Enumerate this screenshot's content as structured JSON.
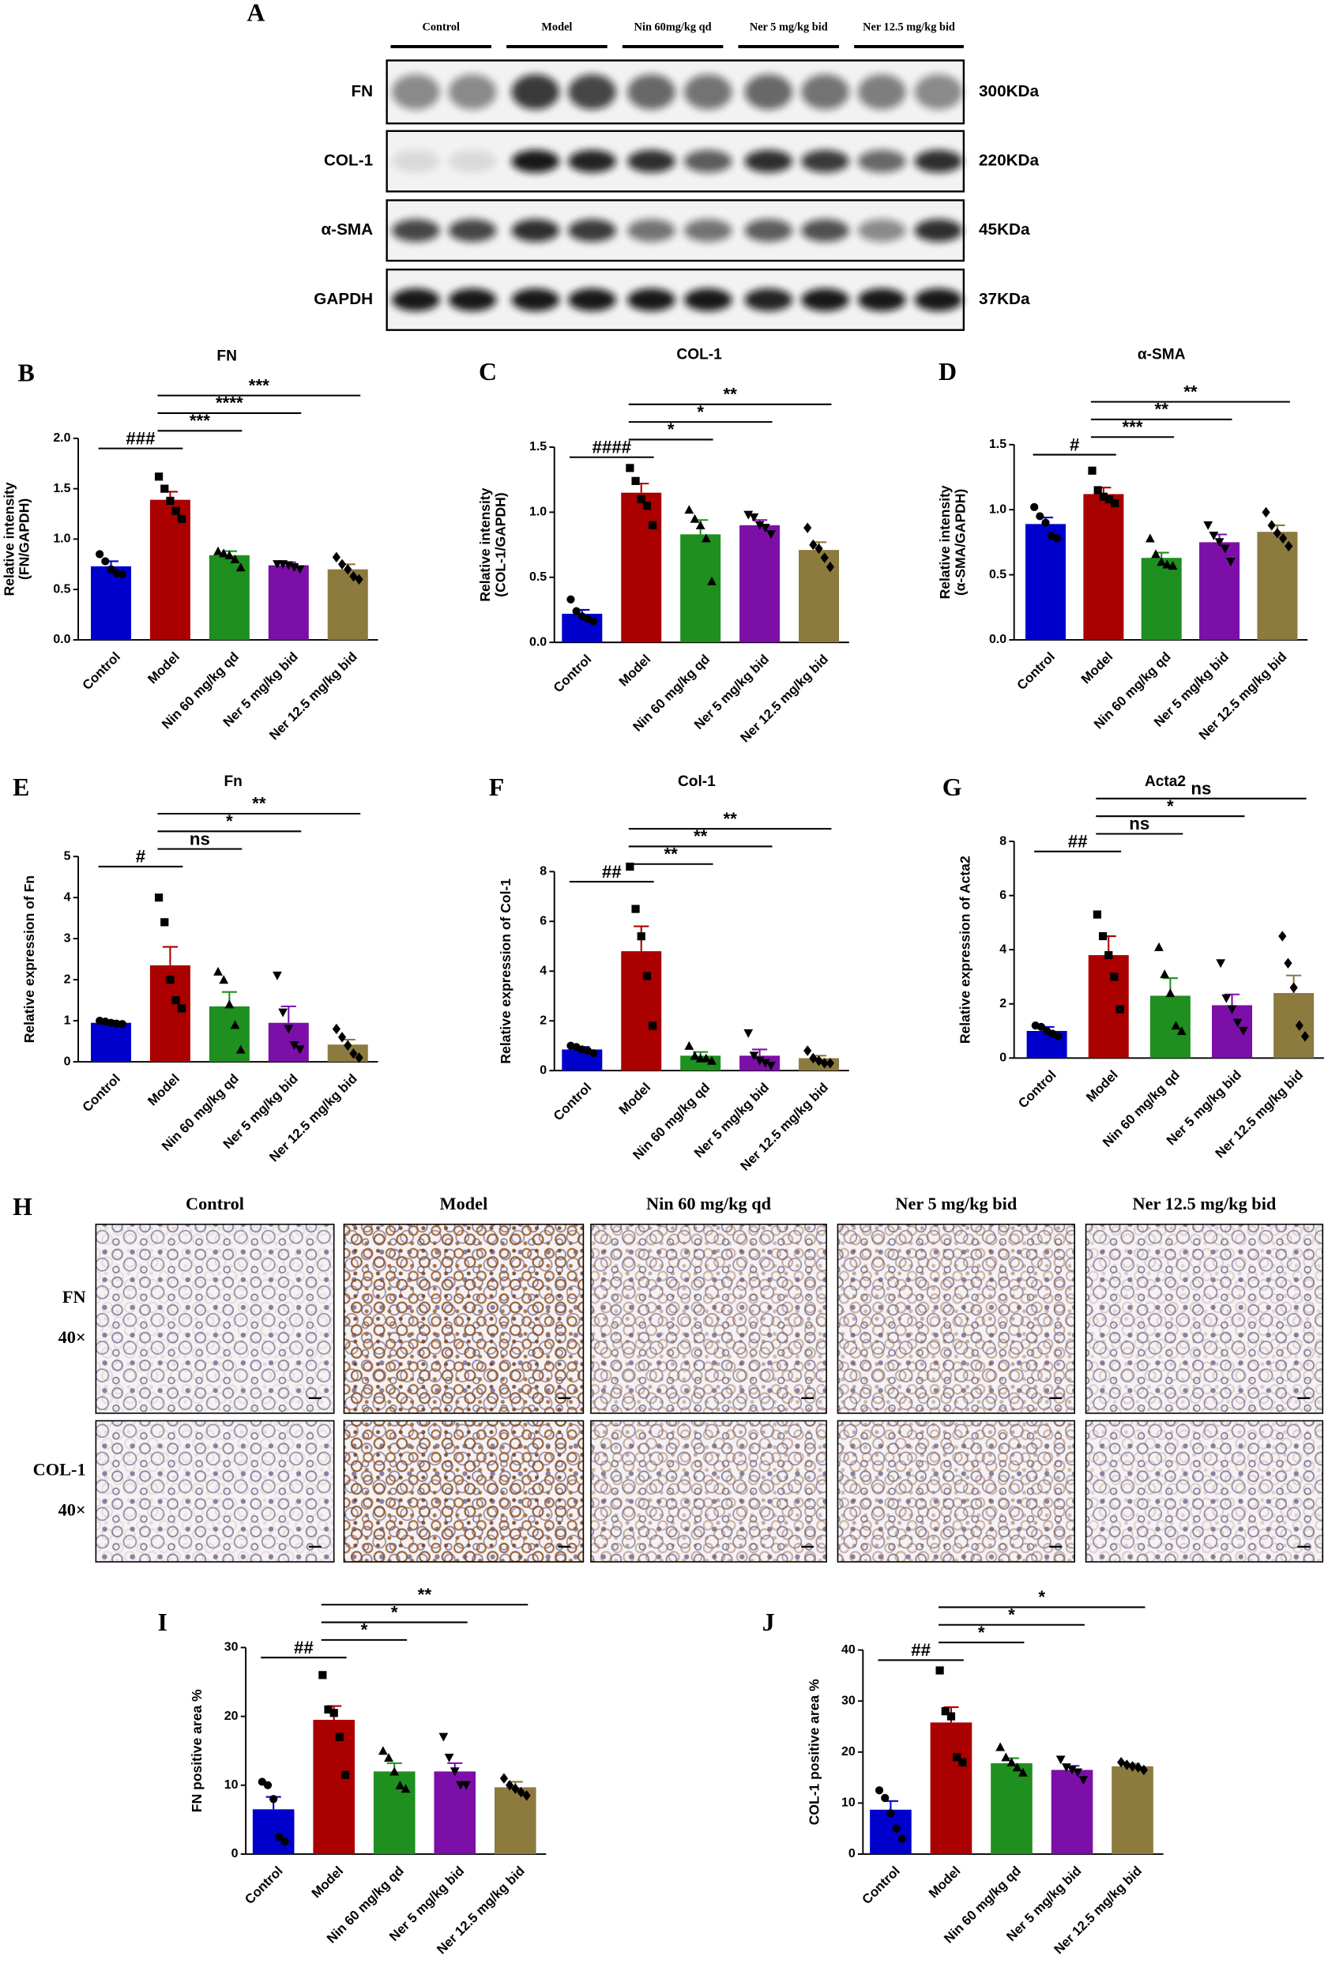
{
  "blot": {
    "panel": "A",
    "groups": [
      "Control",
      "Model",
      "Nin 60mg/kg qd",
      "Ner 5 mg/kg bid",
      "Ner 12.5 mg/kg bid"
    ],
    "rows": [
      {
        "protein": "FN",
        "size": "300KDa"
      },
      {
        "protein": "COL-1",
        "size": "220KDa"
      },
      {
        "protein": "α-SMA",
        "size": "45KDa"
      },
      {
        "protein": "GAPDH",
        "size": "37KDa"
      }
    ]
  },
  "histology": {
    "panel": "H",
    "columns": [
      "Control",
      "Model",
      "Nin 60 mg/kg qd",
      "Ner 5 mg/kg bid",
      "Ner 12.5 mg/kg bid"
    ],
    "rows": [
      {
        "stain": "FN",
        "magnification": "40×"
      },
      {
        "stain": "COL-1",
        "magnification": "40×"
      }
    ]
  },
  "chart_data": [
    {
      "type": "bar",
      "panel": "B",
      "title": "FN",
      "ylabel": [
        "Relative intensity",
        "(FN/GAPDH)"
      ],
      "categories": [
        "Control",
        "Model",
        "Nin 60 mg/kg qd",
        "Ner 5 mg/kg bid",
        "Ner 12.5 mg/kg bid"
      ],
      "colors": [
        "#0000cd",
        "#aa0000",
        "#1f8f1f",
        "#7b0fa8",
        "#8c7a3e"
      ],
      "values": [
        0.73,
        1.39,
        0.84,
        0.74,
        0.7
      ],
      "errors": [
        0.05,
        0.08,
        0.04,
        0.03,
        0.05
      ],
      "points": [
        [
          0.85,
          0.78,
          0.7,
          0.66,
          0.65
        ],
        [
          1.62,
          1.5,
          1.38,
          1.28,
          1.2
        ],
        [
          0.88,
          0.86,
          0.84,
          0.8,
          0.72
        ],
        [
          0.75,
          0.75,
          0.74,
          0.72,
          0.7
        ],
        [
          0.82,
          0.75,
          0.7,
          0.63,
          0.6
        ]
      ],
      "ylim": [
        0,
        2
      ],
      "yticks": [
        {
          "value": 0,
          "label": "0.0"
        },
        {
          "value": 0.5,
          "label": "0.5"
        },
        {
          "value": 1,
          "label": "1.0"
        },
        {
          "value": 1.5,
          "label": "1.5"
        },
        {
          "value": 2,
          "label": "2.0"
        }
      ],
      "comparisons": [
        {
          "label": "###",
          "groups": [
            "Control",
            "Model"
          ]
        },
        {
          "label": "***",
          "groups": [
            "Model",
            "Nin 60 mg/kg qd"
          ]
        },
        {
          "label": "****",
          "groups": [
            "Model",
            "Ner 5 mg/kg bid"
          ]
        },
        {
          "label": "***",
          "groups": [
            "Model",
            "Ner 12.5 mg/kg bid"
          ]
        }
      ]
    },
    {
      "type": "bar",
      "panel": "C",
      "title": "COL-1",
      "ylabel": [
        "Relative intensity",
        "(COL-1/GAPDH)"
      ],
      "categories": [
        "Control",
        "Model",
        "Nin 60 mg/kg qd",
        "Ner 5 mg/kg bid",
        "Ner 12.5 mg/kg bid"
      ],
      "colors": [
        "#0000cd",
        "#aa0000",
        "#1f8f1f",
        "#7b0fa8",
        "#8c7a3e"
      ],
      "values": [
        0.22,
        1.15,
        0.83,
        0.9,
        0.71
      ],
      "errors": [
        0.03,
        0.07,
        0.11,
        0.04,
        0.06
      ],
      "points": [
        [
          0.33,
          0.24,
          0.2,
          0.18,
          0.16
        ],
        [
          1.34,
          1.24,
          1.1,
          1.05,
          0.9
        ],
        [
          1.02,
          0.95,
          0.9,
          0.8,
          0.47
        ],
        [
          0.98,
          0.96,
          0.9,
          0.88,
          0.83
        ],
        [
          0.88,
          0.75,
          0.72,
          0.65,
          0.58
        ]
      ],
      "ylim": [
        0,
        1.5
      ],
      "yticks": [
        {
          "value": 0,
          "label": "0.0"
        },
        {
          "value": 0.5,
          "label": "0.5"
        },
        {
          "value": 1,
          "label": "1.0"
        },
        {
          "value": 1.5,
          "label": "1.5"
        }
      ],
      "comparisons": [
        {
          "label": "####",
          "groups": [
            "Control",
            "Model"
          ]
        },
        {
          "label": "*",
          "groups": [
            "Model",
            "Nin 60 mg/kg qd"
          ]
        },
        {
          "label": "*",
          "groups": [
            "Model",
            "Ner 5 mg/kg bid"
          ]
        },
        {
          "label": "**",
          "groups": [
            "Model",
            "Ner 12.5 mg/kg bid"
          ]
        }
      ]
    },
    {
      "type": "bar",
      "panel": "D",
      "title": "α-SMA",
      "ylabel": [
        "Relative intensity",
        "(α-SMA/GAPDH)"
      ],
      "categories": [
        "Control",
        "Model",
        "Nin 60 mg/kg qd",
        "Ner 5 mg/kg bid",
        "Ner 12.5 mg/kg bid"
      ],
      "colors": [
        "#0000cd",
        "#aa0000",
        "#1f8f1f",
        "#7b0fa8",
        "#8c7a3e"
      ],
      "values": [
        0.89,
        1.12,
        0.63,
        0.75,
        0.83
      ],
      "errors": [
        0.05,
        0.05,
        0.04,
        0.06,
        0.05
      ],
      "points": [
        [
          1.02,
          0.95,
          0.9,
          0.8,
          0.78
        ],
        [
          1.3,
          1.15,
          1.1,
          1.08,
          1.05
        ],
        [
          0.78,
          0.66,
          0.6,
          0.58,
          0.57
        ],
        [
          0.88,
          0.8,
          0.75,
          0.7,
          0.6
        ],
        [
          0.98,
          0.88,
          0.82,
          0.78,
          0.72
        ]
      ],
      "ylim": [
        0,
        1.5
      ],
      "yticks": [
        {
          "value": 0,
          "label": "0.0"
        },
        {
          "value": 0.5,
          "label": "0.5"
        },
        {
          "value": 1,
          "label": "1.0"
        },
        {
          "value": 1.5,
          "label": "1.5"
        }
      ],
      "comparisons": [
        {
          "label": "#",
          "groups": [
            "Control",
            "Model"
          ]
        },
        {
          "label": "***",
          "groups": [
            "Model",
            "Nin 60 mg/kg qd"
          ]
        },
        {
          "label": "**",
          "groups": [
            "Model",
            "Ner 5 mg/kg bid"
          ]
        },
        {
          "label": "**",
          "groups": [
            "Model",
            "Ner 12.5 mg/kg bid"
          ]
        }
      ]
    },
    {
      "type": "bar",
      "panel": "E",
      "title": "Fn",
      "ylabel": [
        "Relative expression of Fn"
      ],
      "categories": [
        "Control",
        "Model",
        "Nin 60 mg/kg qd",
        "Ner 5 mg/kg bid",
        "Ner 12.5 mg/kg bid"
      ],
      "colors": [
        "#0000cd",
        "#aa0000",
        "#1f8f1f",
        "#7b0fa8",
        "#8c7a3e"
      ],
      "values": [
        0.95,
        2.35,
        1.35,
        0.95,
        0.42
      ],
      "errors": [
        0.05,
        0.45,
        0.35,
        0.4,
        0.12
      ],
      "points": [
        [
          1.0,
          0.98,
          0.95,
          0.93,
          0.92
        ],
        [
          4.0,
          3.4,
          2.0,
          1.5,
          1.3
        ],
        [
          2.2,
          2.0,
          1.4,
          0.9,
          0.3
        ],
        [
          2.1,
          1.2,
          0.8,
          0.4,
          0.3
        ],
        [
          0.8,
          0.6,
          0.4,
          0.2,
          0.1
        ]
      ],
      "ylim": [
        0,
        5
      ],
      "yticks": [
        0,
        1,
        2,
        3,
        4,
        5
      ],
      "comparisons": [
        {
          "label": "#",
          "groups": [
            "Control",
            "Model"
          ]
        },
        {
          "label": "ns",
          "groups": [
            "Model",
            "Nin 60 mg/kg qd"
          ]
        },
        {
          "label": "*",
          "groups": [
            "Model",
            "Ner 5 mg/kg bid"
          ]
        },
        {
          "label": "**",
          "groups": [
            "Model",
            "Ner 12.5 mg/kg bid"
          ]
        }
      ]
    },
    {
      "type": "bar",
      "panel": "F",
      "title": "Col-1",
      "ylabel": [
        "Relative expression of Col-1"
      ],
      "categories": [
        "Control",
        "Model",
        "Nin 60 mg/kg qd",
        "Ner 5 mg/kg bid",
        "Ner 12.5 mg/kg bid"
      ],
      "colors": [
        "#0000cd",
        "#aa0000",
        "#1f8f1f",
        "#7b0fa8",
        "#8c7a3e"
      ],
      "values": [
        0.85,
        4.8,
        0.6,
        0.6,
        0.5
      ],
      "errors": [
        0.1,
        1.0,
        0.15,
        0.25,
        0.1
      ],
      "points": [
        [
          1.0,
          0.95,
          0.85,
          0.8,
          0.7
        ],
        [
          8.2,
          6.5,
          5.4,
          3.8,
          1.8
        ],
        [
          1.0,
          0.6,
          0.5,
          0.5,
          0.4
        ],
        [
          1.5,
          0.6,
          0.4,
          0.3,
          0.2
        ],
        [
          0.8,
          0.5,
          0.4,
          0.3,
          0.3
        ]
      ],
      "ylim": [
        0,
        8
      ],
      "yticks": [
        0,
        2,
        4,
        6,
        8
      ],
      "comparisons": [
        {
          "label": "##",
          "groups": [
            "Control",
            "Model"
          ]
        },
        {
          "label": "**",
          "groups": [
            "Model",
            "Nin 60 mg/kg qd"
          ]
        },
        {
          "label": "**",
          "groups": [
            "Model",
            "Ner 5 mg/kg bid"
          ]
        },
        {
          "label": "**",
          "groups": [
            "Model",
            "Ner 12.5 mg/kg bid"
          ]
        }
      ]
    },
    {
      "type": "bar",
      "panel": "G",
      "title": "Acta2",
      "ylabel": [
        "Relative expression of Acta2"
      ],
      "categories": [
        "Control",
        "Model",
        "Nin 60 mg/kg qd",
        "Ner 5 mg/kg bid",
        "Ner 12.5 mg/kg bid"
      ],
      "colors": [
        "#0000cd",
        "#aa0000",
        "#1f8f1f",
        "#7b0fa8",
        "#8c7a3e"
      ],
      "values": [
        1.0,
        3.8,
        2.3,
        1.95,
        2.4
      ],
      "errors": [
        0.15,
        0.7,
        0.65,
        0.4,
        0.65
      ],
      "points": [
        [
          1.2,
          1.15,
          1.0,
          0.9,
          0.8
        ],
        [
          5.3,
          4.5,
          3.8,
          3.0,
          1.8
        ],
        [
          4.1,
          3.1,
          2.4,
          1.2,
          1.0
        ],
        [
          3.5,
          2.2,
          1.8,
          1.3,
          1.0
        ],
        [
          4.5,
          3.5,
          2.6,
          1.2,
          0.8
        ]
      ],
      "ylim": [
        0,
        8
      ],
      "yticks": [
        0,
        2,
        4,
        6,
        8
      ],
      "comparisons": [
        {
          "label": "##",
          "groups": [
            "Control",
            "Model"
          ]
        },
        {
          "label": "ns",
          "groups": [
            "Model",
            "Nin 60 mg/kg qd"
          ]
        },
        {
          "label": "*",
          "groups": [
            "Model",
            "Ner 5 mg/kg bid"
          ]
        },
        {
          "label": "ns",
          "groups": [
            "Model",
            "Ner 12.5 mg/kg bid"
          ]
        }
      ]
    },
    {
      "type": "bar",
      "panel": "I",
      "ylabel": [
        "FN positive area %"
      ],
      "categories": [
        "Control",
        "Model",
        "Nin 60 mg/kg qd",
        "Ner 5 mg/kg bid",
        "Ner 12.5 mg/kg bid"
      ],
      "colors": [
        "#0000cd",
        "#aa0000",
        "#1f8f1f",
        "#7b0fa8",
        "#8c7a3e"
      ],
      "values": [
        6.5,
        19.5,
        12.0,
        12.0,
        9.7
      ],
      "errors": [
        1.8,
        2.0,
        1.2,
        1.2,
        0.8
      ],
      "points": [
        [
          10.5,
          10.0,
          8.0,
          2.5,
          1.8
        ],
        [
          26,
          21,
          20.5,
          17,
          11.5
        ],
        [
          15,
          14,
          12,
          10,
          9.5
        ],
        [
          17,
          14,
          12,
          10,
          10
        ],
        [
          11,
          10,
          9.5,
          9,
          8.5
        ]
      ],
      "ylim": [
        0,
        30
      ],
      "yticks": [
        0,
        10,
        20,
        30
      ],
      "comparisons": [
        {
          "label": "##",
          "groups": [
            "Control",
            "Model"
          ]
        },
        {
          "label": "*",
          "groups": [
            "Model",
            "Nin 60 mg/kg qd"
          ]
        },
        {
          "label": "*",
          "groups": [
            "Model",
            "Ner 5 mg/kg bid"
          ]
        },
        {
          "label": "**",
          "groups": [
            "Model",
            "Ner 12.5 mg/kg bid"
          ]
        }
      ]
    },
    {
      "type": "bar",
      "panel": "J",
      "ylabel": [
        "COL-1 positive area %"
      ],
      "categories": [
        "Control",
        "Model",
        "Nin 60 mg/kg qd",
        "Ner 5 mg/kg bid",
        "Ner 12.5 mg/kg bid"
      ],
      "colors": [
        "#0000cd",
        "#aa0000",
        "#1f8f1f",
        "#7b0fa8",
        "#8c7a3e"
      ],
      "values": [
        8.7,
        25.8,
        17.8,
        16.5,
        17.2
      ],
      "errors": [
        1.7,
        3.0,
        1.0,
        0.8,
        0.5
      ],
      "points": [
        [
          12.5,
          11,
          8,
          5,
          3
        ],
        [
          36,
          28,
          27,
          19,
          18
        ],
        [
          21,
          19,
          18,
          17,
          16
        ],
        [
          18.5,
          17,
          16.5,
          16,
          14.5
        ],
        [
          18,
          17.5,
          17.2,
          17,
          16.5
        ]
      ],
      "ylim": [
        0,
        40
      ],
      "yticks": [
        0,
        10,
        20,
        30,
        40
      ],
      "comparisons": [
        {
          "label": "##",
          "groups": [
            "Control",
            "Model"
          ]
        },
        {
          "label": "*",
          "groups": [
            "Model",
            "Nin 60 mg/kg qd"
          ]
        },
        {
          "label": "*",
          "groups": [
            "Model",
            "Ner 5 mg/kg bid"
          ]
        },
        {
          "label": "*",
          "groups": [
            "Model",
            "Ner 12.5 mg/kg bid"
          ]
        }
      ]
    }
  ]
}
